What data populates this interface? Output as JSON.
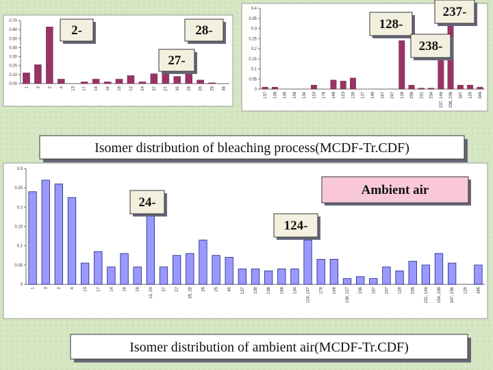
{
  "chart_data": [
    {
      "type": "bar",
      "color": "#993366",
      "categories": [
        "1",
        "3",
        "2",
        "4",
        "13",
        "17",
        "14",
        "16",
        "18",
        "12",
        "24",
        "37",
        "27",
        "35",
        "28",
        "26",
        "25",
        "46"
      ],
      "values": [
        0.12,
        0.21,
        0.63,
        0.05,
        0,
        0.02,
        0.05,
        0.02,
        0.05,
        0.09,
        0.02,
        0.11,
        0.18,
        0.08,
        0.38,
        0.04,
        0.01,
        0
      ],
      "ylim": [
        0,
        0.7
      ],
      "yticks": [
        {
          "value": 0,
          "label": "0.00"
        },
        {
          "value": 0.1,
          "label": "0.10"
        },
        {
          "value": 0.2,
          "label": "0.20"
        },
        {
          "value": 0.3,
          "label": "0.30"
        },
        {
          "value": 0.4,
          "label": "0.40"
        },
        {
          "value": 0.5,
          "label": "0.50"
        },
        {
          "value": 0.6,
          "label": "0.60"
        },
        {
          "value": 0.7,
          "label": "0.70"
        }
      ],
      "annotations": [
        "2-",
        "28-",
        "27-"
      ]
    },
    {
      "type": "bar",
      "color": "#993366",
      "categories": [
        "137",
        "138",
        "136",
        "156",
        "134",
        "124",
        "178",
        "148",
        "123",
        "139",
        "127",
        "146",
        "167",
        "247",
        "128",
        "236",
        "231",
        "234",
        "237, 146",
        "238, 236",
        "347",
        "129",
        "346"
      ],
      "values": [
        0.01,
        0.01,
        0,
        0,
        0,
        0.02,
        0,
        0.045,
        0.04,
        0.055,
        0,
        0,
        0,
        0,
        0.24,
        0.02,
        0.005,
        0.005,
        0.2,
        0.37,
        0.02,
        0.02,
        0.01
      ],
      "ylim": [
        0,
        0.4
      ],
      "yticks": [
        0,
        0.05,
        0.1,
        0.15,
        0.2,
        0.25,
        0.3,
        0.35,
        0.4
      ],
      "annotations": [
        "128-",
        "237-",
        "238-"
      ]
    },
    {
      "type": "bar",
      "color": "#9999ff",
      "categories": [
        "1",
        "3",
        "2",
        "4",
        "13",
        "17",
        "14",
        "16",
        "18",
        "12, 24",
        "37",
        "27",
        "35, 28",
        "26",
        "25",
        "46",
        "137",
        "138",
        "136",
        "168",
        "134",
        "124, 147",
        "178",
        "148",
        "139, 127",
        "156",
        "167",
        "247",
        "128",
        "236",
        "231, 149",
        "234, 238",
        "347, 236",
        "129",
        "346"
      ],
      "values": [
        0.24,
        0.27,
        0.26,
        0.225,
        0.055,
        0.085,
        0.045,
        0.08,
        0.045,
        0.18,
        0.045,
        0.075,
        0.08,
        0.115,
        0.075,
        0.07,
        0.04,
        0.04,
        0.035,
        0.04,
        0.04,
        0.115,
        0.065,
        0.065,
        0.015,
        0.02,
        0.015,
        0.045,
        0.035,
        0.06,
        0.05,
        0.08,
        0.055,
        0,
        0.05
      ],
      "ylim": [
        0,
        0.3
      ],
      "yticks": [
        0,
        0.05,
        0.1,
        0.15,
        0.2,
        0.25,
        0.3
      ],
      "annotations": [
        "Ambient air",
        "24-",
        "124-"
      ]
    }
  ],
  "captions": [
    "Isomer distribution of bleaching process(MCDF-Tr.CDF)",
    "Isomer distribution of ambient air(MCDF-Tr.CDF)"
  ]
}
